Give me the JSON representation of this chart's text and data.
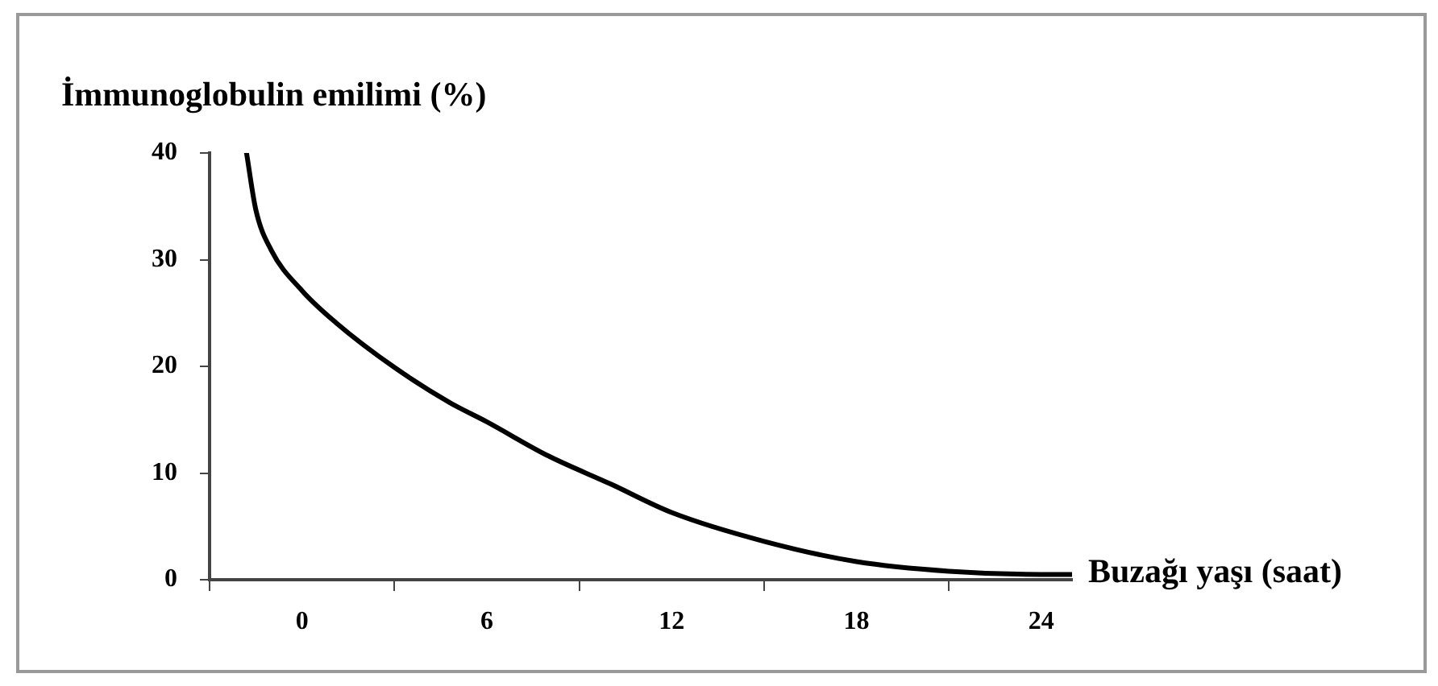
{
  "chart_data": {
    "type": "line",
    "xlabel": "Buzağı yaşı (saat)",
    "ylabel": "İmmunoglobulin emilimi (%)",
    "x": [
      -1.8,
      -1.5,
      -1,
      0,
      1.1,
      3,
      4.8,
      6,
      8,
      10,
      12,
      15,
      18,
      21,
      24,
      25
    ],
    "series": [
      {
        "color": "#000000",
        "values": [
          40,
          34.7,
          30.9,
          27.1,
          24.1,
          19.9,
          16.6,
          14.8,
          11.6,
          9,
          6.3,
          3.6,
          1.7,
          0.8,
          0.5,
          0.5
        ]
      }
    ],
    "xlim": [
      -3,
      25
    ],
    "xticks": [
      {
        "value": -3,
        "label": null
      },
      0,
      {
        "value": 3,
        "label": null
      },
      6,
      {
        "value": 9,
        "label": null
      },
      12,
      {
        "value": 15,
        "label": null
      },
      18,
      {
        "value": 21,
        "label": null
      },
      24
    ],
    "ylim": [
      0,
      40
    ],
    "yticks": [
      0,
      10,
      20,
      30,
      40
    ],
    "grid": false,
    "legend": false,
    "marker": "none",
    "line_style": "solid"
  }
}
